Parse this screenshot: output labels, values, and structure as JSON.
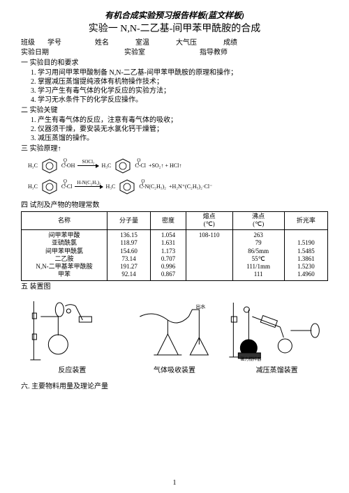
{
  "header": "有机合成实验预习报告样板(蓝文样板)",
  "title": "实验一 N,N-二乙基-间甲苯甲酰胺的合成",
  "info1": {
    "c1": "班级",
    "c2": "学号",
    "c3": "姓名",
    "c4": "室温",
    "c5": "大气压",
    "c6": "成绩"
  },
  "info2": {
    "c1": "实验日期",
    "c2": "实验室",
    "c3": "指导教师"
  },
  "sec1": {
    "title": "一  实验目的和要求",
    "i1": "1.  学习用间甲苯甲酸制备 N,N-二乙基-间甲苯甲酰胺的原理和操作；",
    "i2": "2.  掌握减压蒸馏提纯液体有机物操作技术；",
    "i3": "3.  学习产生有毒气体的化学反应的实验方法；",
    "i4": "4.  学习无水条件下的化学反应操作。"
  },
  "sec2": {
    "title": "二  实验关键",
    "i1": "1. 产生有毒气体的反应，注意有毒气体的吸收；",
    "i2": "2. 仪器须干燥，要安装无水氯化钙干燥管；",
    "i3": "3. 减压蒸馏的操作。"
  },
  "sec3": {
    "title": "三  实验原理↑"
  },
  "chem": {
    "r1": {
      "g1_sub": "H₃C",
      "g1_right": "C-OH",
      "g1_o": "O",
      "reagent": "SOCl₂",
      "g2_sub": "H₃C",
      "g2_right": "C-Cl",
      "g2_o": "O",
      "prod": "+SO₂↑ + HCl↑"
    },
    "r2": {
      "g1_sub": "H₃C",
      "g1_right": "C-Cl",
      "g1_o": "O",
      "reagent": "H-N(C₂H₅)₂",
      "g2_sub": "H₃C",
      "g2_right": "C-N(C₂H₅)₂",
      "g2_o": "O",
      "prod": "+H₂N⁺(C₂H₅)₂·Cl⁻"
    }
  },
  "sec4": "四 试剂及产物的物理常数",
  "table": {
    "headers": {
      "h1": "名称",
      "h2": "分子量",
      "h3": "密度",
      "h4": "熔点\n(℃)",
      "h5": "沸点\n(℃)",
      "h6": "折光率"
    },
    "rows": [
      {
        "n": "间甲苯甲酸",
        "mw": "136.15",
        "d": "1.054",
        "mp": "108-110",
        "bp": "263",
        "ri": ""
      },
      {
        "n": "亚硫酰氯",
        "mw": "118.97",
        "d": "1.631",
        "mp": "",
        "bp": "79",
        "ri": "1.5190"
      },
      {
        "n": "间甲苯甲酰氯",
        "mw": "154.60",
        "d": "1.173",
        "mp": "",
        "bp": "86/5mm",
        "ri": "1.5485"
      },
      {
        "n": "二乙胺",
        "mw": "73.14",
        "d": "0.707",
        "mp": "",
        "bp": "55℃",
        "ri": "1.3861"
      },
      {
        "n": "N,N-二甲基苯甲酰胺",
        "mw": "191.27",
        "d": "0.996",
        "mp": "",
        "bp": "111/1mm",
        "ri": "1.5230"
      },
      {
        "n": "甲苯",
        "mw": "92.14",
        "d": "0.867",
        "mp": "",
        "bp": "111",
        "ri": "1.4960"
      }
    ]
  },
  "sec5": "五 装置图",
  "apparatus": {
    "a1": "反应装置",
    "a2": "气体吸收装置",
    "a3": "减压蒸馏装置"
  },
  "sec6": "六. 主要物料用量及理论产量",
  "pagenum": "1"
}
